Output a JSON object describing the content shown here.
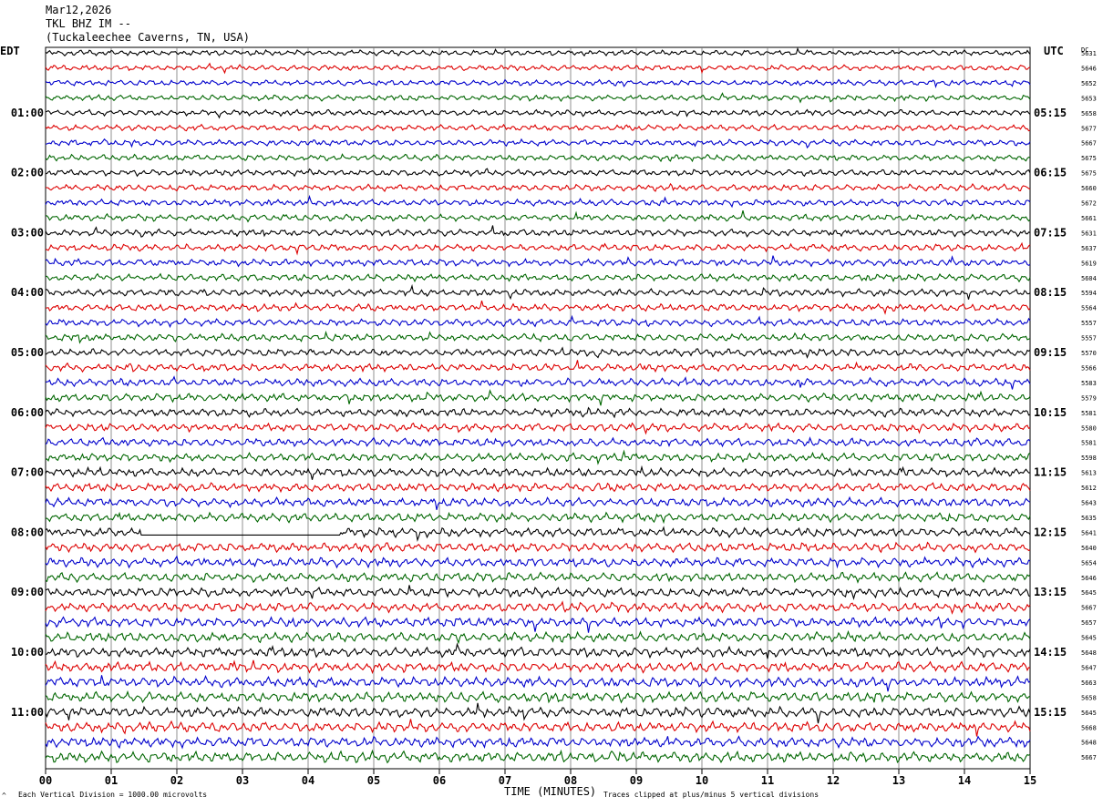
{
  "header": {
    "date": "Mar12,2026",
    "station": "TKL BHZ IM --",
    "location": "(Tuckaleechee Caverns, TN, USA)"
  },
  "left_timezone": "EDT",
  "right_timezone": "UTC",
  "dc_header": "DC",
  "footer": {
    "scale": "Each Vertical Division = 1000.00 microvolts",
    "axis_title": "TIME (MINUTES)",
    "clip": "Traces clipped at plus/minus 5 vertical divisions"
  },
  "chart_data": {
    "type": "line",
    "xlabel": "TIME (MINUTES)",
    "xlim": [
      0,
      15
    ],
    "x_ticks": [
      "00",
      "01",
      "02",
      "03",
      "04",
      "05",
      "06",
      "07",
      "08",
      "09",
      "10",
      "11",
      "12",
      "13",
      "14",
      "15"
    ],
    "trace_colors": [
      "#000000",
      "#dd0000",
      "#0000cc",
      "#006600"
    ],
    "left_hour_labels": [
      "01:00",
      "02:00",
      "03:00",
      "04:00",
      "05:00",
      "06:00",
      "07:00",
      "08:00",
      "09:00",
      "10:00",
      "11:00"
    ],
    "right_hour_labels": [
      "05:15",
      "06:15",
      "07:15",
      "08:15",
      "09:15",
      "10:15",
      "11:15",
      "12:15",
      "13:15",
      "14:15",
      "15:15"
    ],
    "dc_offsets": [
      "5631",
      "5646",
      "5652",
      "5653",
      "5658",
      "5677",
      "5667",
      "5675",
      "5675",
      "5660",
      "5672",
      "5661",
      "5631",
      "5637",
      "5619",
      "5604",
      "5594",
      "5564",
      "5557",
      "5557",
      "5570",
      "5566",
      "5583",
      "5579",
      "5581",
      "5580",
      "5581",
      "5598",
      "5613",
      "5612",
      "5643",
      "5635",
      "5641",
      "5640",
      "5654",
      "5646",
      "5645",
      "5667",
      "5657",
      "5645",
      "5648",
      "5647",
      "5663",
      "5658",
      "5645",
      "5668",
      "5648",
      "5667"
    ],
    "flatline_segment": {
      "row": 32,
      "x_start_min": 1.45,
      "x_end_min": 4.5
    }
  }
}
